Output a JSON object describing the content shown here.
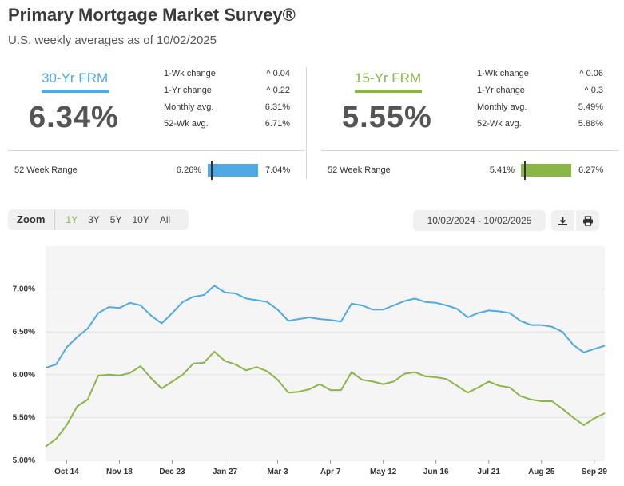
{
  "header": {
    "title": "Primary Mortgage Market Survey®",
    "subtitle": "U.S. weekly averages as of 10/02/2025"
  },
  "rates": [
    {
      "name": "30-Yr FRM",
      "value": "6.34%",
      "color": "#4fa9e6",
      "stats": [
        {
          "label": "1-Wk change",
          "value": "^ 0.04"
        },
        {
          "label": "1-Yr change",
          "value": "^ 0.22"
        },
        {
          "label": "Monthly avg.",
          "value": "6.31%"
        },
        {
          "label": "52-Wk avg.",
          "value": "6.71%"
        }
      ],
      "range_label": "52 Week Range",
      "range_low": "6.26%",
      "range_high": "7.04%"
    },
    {
      "name": "15-Yr FRM",
      "value": "5.55%",
      "color": "#8ab648",
      "stats": [
        {
          "label": "1-Wk change",
          "value": "^ 0.06"
        },
        {
          "label": "1-Yr change",
          "value": "^ 0.3"
        },
        {
          "label": "Monthly avg.",
          "value": "5.49%"
        },
        {
          "label": "52-Wk avg.",
          "value": "5.88%"
        }
      ],
      "range_label": "52 Week Range",
      "range_low": "5.41%",
      "range_high": "6.27%"
    }
  ],
  "toolbar": {
    "zoom_label": "Zoom",
    "zoom_options": [
      "1Y",
      "3Y",
      "5Y",
      "10Y",
      "All"
    ],
    "active_zoom": "1Y",
    "date_range": "10/02/2024 - 10/02/2025",
    "download_icon": "download-icon",
    "print_icon": "print-icon"
  },
  "chart_data": {
    "type": "line",
    "ylim": [
      5.0,
      7.5
    ],
    "y_ticks": [
      "5.00%",
      "5.50%",
      "6.00%",
      "6.50%",
      "7.00%"
    ],
    "y_tick_values": [
      5.0,
      5.5,
      6.0,
      6.5,
      7.0
    ],
    "x_ticks": [
      "Oct 14",
      "Nov 18",
      "Dec 23",
      "Jan 27",
      "Mar 3",
      "Apr 7",
      "May 12",
      "Jun 16",
      "Jul 21",
      "Aug 25",
      "Sep 29"
    ],
    "x_tick_week_index": [
      2,
      7,
      12,
      17,
      22,
      27,
      32,
      37,
      42,
      47,
      52
    ],
    "grid": true,
    "series": [
      {
        "color": "#4fa9e6",
        "values": [
          6.08,
          6.12,
          6.32,
          6.44,
          6.54,
          6.72,
          6.79,
          6.78,
          6.84,
          6.81,
          6.69,
          6.6,
          6.72,
          6.85,
          6.91,
          6.93,
          7.04,
          6.96,
          6.95,
          6.89,
          6.87,
          6.85,
          6.76,
          6.63,
          6.65,
          6.67,
          6.65,
          6.64,
          6.62,
          6.83,
          6.81,
          6.76,
          6.76,
          6.81,
          6.86,
          6.89,
          6.85,
          6.84,
          6.81,
          6.77,
          6.67,
          6.72,
          6.75,
          6.74,
          6.72,
          6.63,
          6.58,
          6.58,
          6.56,
          6.5,
          6.35,
          6.26,
          6.3,
          6.34
        ]
      },
      {
        "color": "#8ab648",
        "values": [
          5.16,
          5.25,
          5.41,
          5.63,
          5.71,
          5.99,
          6.0,
          5.99,
          6.02,
          6.1,
          5.96,
          5.84,
          5.92,
          6.0,
          6.13,
          6.14,
          6.27,
          6.16,
          6.12,
          6.05,
          6.09,
          6.04,
          5.94,
          5.79,
          5.8,
          5.83,
          5.89,
          5.82,
          5.82,
          6.03,
          5.94,
          5.92,
          5.89,
          5.92,
          6.01,
          6.03,
          5.98,
          5.97,
          5.95,
          5.87,
          5.79,
          5.85,
          5.92,
          5.87,
          5.85,
          5.75,
          5.71,
          5.69,
          5.69,
          5.6,
          5.5,
          5.41,
          5.49,
          5.55
        ]
      }
    ]
  }
}
